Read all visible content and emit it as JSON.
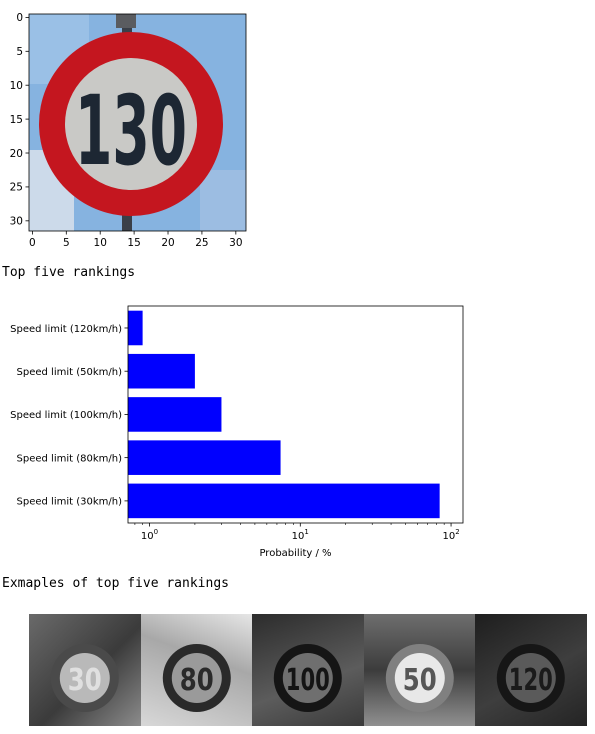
{
  "sign_image": {
    "icon": "speed-limit-130-sign",
    "text": "130",
    "x_ticks": [
      "0",
      "5",
      "10",
      "15",
      "20",
      "25",
      "30"
    ],
    "y_ticks": [
      "0",
      "5",
      "10",
      "15",
      "20",
      "25",
      "30"
    ],
    "colors": {
      "sky": "#86b3e0",
      "ring": "#c4161f",
      "face": "#c9c9c6",
      "digits": "#1d2733"
    }
  },
  "headings": {
    "rankings": "Top five rankings",
    "examples": "Exmaples of top five rankings"
  },
  "chart_data": {
    "type": "bar",
    "orientation": "horizontal",
    "categories": [
      "Speed limit (30km/h)",
      "Speed limit (80km/h)",
      "Speed limit (100km/h)",
      "Speed limit (50km/h)",
      "Speed limit (120km/h)"
    ],
    "values": [
      84,
      7.4,
      3.0,
      2.0,
      0.9
    ],
    "xlabel": "Probability / %",
    "xscale": "log",
    "xlim": [
      0.72,
      120
    ],
    "x_ticks": [
      {
        "value": 1,
        "base": "10",
        "exp": "0"
      },
      {
        "value": 10,
        "base": "10",
        "exp": "1"
      },
      {
        "value": 100,
        "base": "10",
        "exp": "2"
      }
    ],
    "bar_color": "#0000ff",
    "grid": false
  },
  "examples": [
    {
      "icon": "speed-limit-30-sign",
      "text": "30"
    },
    {
      "icon": "speed-limit-80-sign",
      "text": "80"
    },
    {
      "icon": "speed-limit-100-sign",
      "text": "100"
    },
    {
      "icon": "speed-limit-50-sign",
      "text": "50"
    },
    {
      "icon": "speed-limit-120-sign",
      "text": "120"
    }
  ]
}
